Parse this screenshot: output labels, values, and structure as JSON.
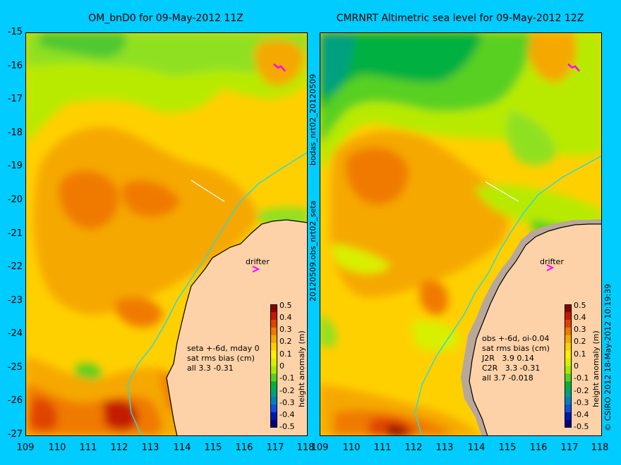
{
  "left_panel": {
    "title": "OM_bnD0 for 09-May-2012 11Z",
    "stats": [
      "seta +-6d, mday 0",
      "sat rms bias (cm)",
      "all 3.3 -0.31"
    ],
    "drifter_label": "drifter",
    "colorbar_label": "height anomaly (m)"
  },
  "right_panel": {
    "title": "CMRNRT Altimetric sea level  for 09-May-2012 12Z",
    "stats": [
      "obs +-6d, oi-0.04",
      "sat rms bias (cm)",
      "J2R   3.9 0.14",
      "C2R   3.3 -0.31",
      "all 3.7 -0.018"
    ],
    "drifter_label": "drifter",
    "colorbar_label": "height anomaly (m)"
  },
  "middle_labels": [
    "bodas_nrt02_20120509",
    "20120509.obs_nrt02_seta"
  ],
  "copyright": "© CSIRO 2012   18-May-2012 10:19:39",
  "axes": {
    "lat_ticks": [
      "-15",
      "-16",
      "-17",
      "-18",
      "-19",
      "-20",
      "-21",
      "-22",
      "-23",
      "-24",
      "-25",
      "-26",
      "-27"
    ],
    "left_lon_ticks": [
      "109",
      "110",
      "111",
      "112",
      "113",
      "114",
      "115",
      "116",
      "117",
      "118"
    ],
    "right_lon_ticks": [
      "109",
      "110",
      "111",
      "112",
      "113",
      "114",
      "115",
      "116",
      "117",
      "118"
    ]
  },
  "colorbar": {
    "ticks": [
      "0.5",
      "0.4",
      "0.3",
      "0.2",
      "0.1",
      "0",
      "-0.1",
      "-0.2",
      "-0.3",
      "-0.4",
      "-0.5"
    ],
    "colors": [
      "#8b0000",
      "#c41a00",
      "#e04400",
      "#f07a00",
      "#f5a800",
      "#ffd000",
      "#ffee00",
      "#d8f000",
      "#a8e800",
      "#58d020",
      "#00b040",
      "#00a080",
      "#0080c0",
      "#1050e0",
      "#0018b0",
      "#000080"
    ]
  },
  "colors": {
    "background": "#00ccff",
    "land": "#fdd2a8",
    "isobath": "#30d8d8",
    "drifter": "#ff00ff"
  }
}
